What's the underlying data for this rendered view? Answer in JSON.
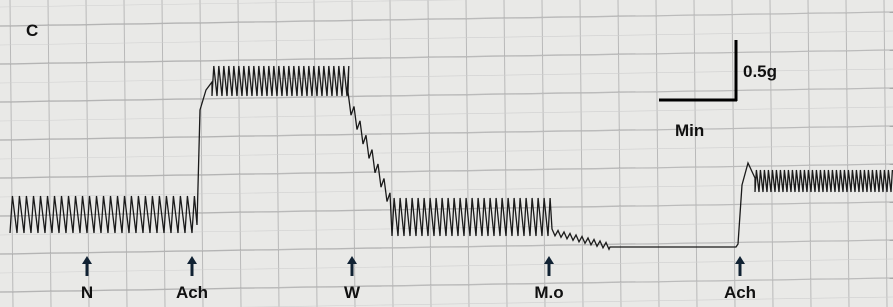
{
  "panel_label": "C",
  "scale_bar": {
    "vertical_label": "0.5g",
    "horizontal_label": "Min"
  },
  "markers": [
    {
      "label": "N"
    },
    {
      "label": "Ach"
    },
    {
      "label": "W"
    },
    {
      "label": "M.o"
    },
    {
      "label": "Ach"
    }
  ]
}
